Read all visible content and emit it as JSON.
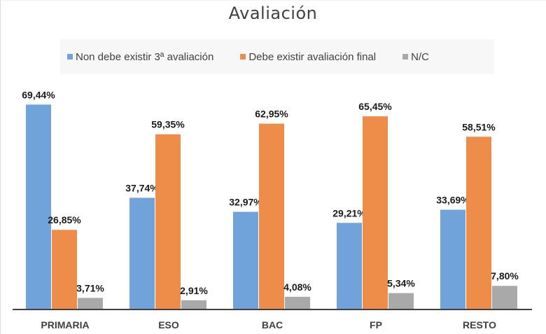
{
  "chart_data": {
    "type": "bar",
    "title": "Avaliación",
    "xlabel": "",
    "ylabel": "",
    "ylim": [
      0,
      70
    ],
    "grid": false,
    "legend_position": "top",
    "categories": [
      "PRIMARIA",
      "ESO",
      "BAC",
      "FP",
      "RESTO"
    ],
    "series": [
      {
        "name": "Non debe existir 3ª avaliación",
        "color": "#6fa3d9",
        "values": [
          69.44,
          37.74,
          32.97,
          29.21,
          33.69
        ],
        "labels": [
          "69,44%",
          "37,74%",
          "32,97%",
          "29,21%",
          "33,69%"
        ]
      },
      {
        "name": "Debe existir avaliación final",
        "color": "#ee8c4a",
        "values": [
          26.85,
          59.35,
          62.95,
          65.45,
          58.51
        ],
        "labels": [
          "26,85%",
          "59,35%",
          "62,95%",
          "65,45%",
          "58,51%"
        ]
      },
      {
        "name": "N/C",
        "color": "#a9a9a9",
        "values": [
          3.71,
          2.91,
          4.08,
          5.34,
          7.8
        ],
        "labels": [
          "3,71%",
          "2,91%",
          "4,08%",
          "5,34%",
          "7,80%"
        ]
      }
    ]
  }
}
